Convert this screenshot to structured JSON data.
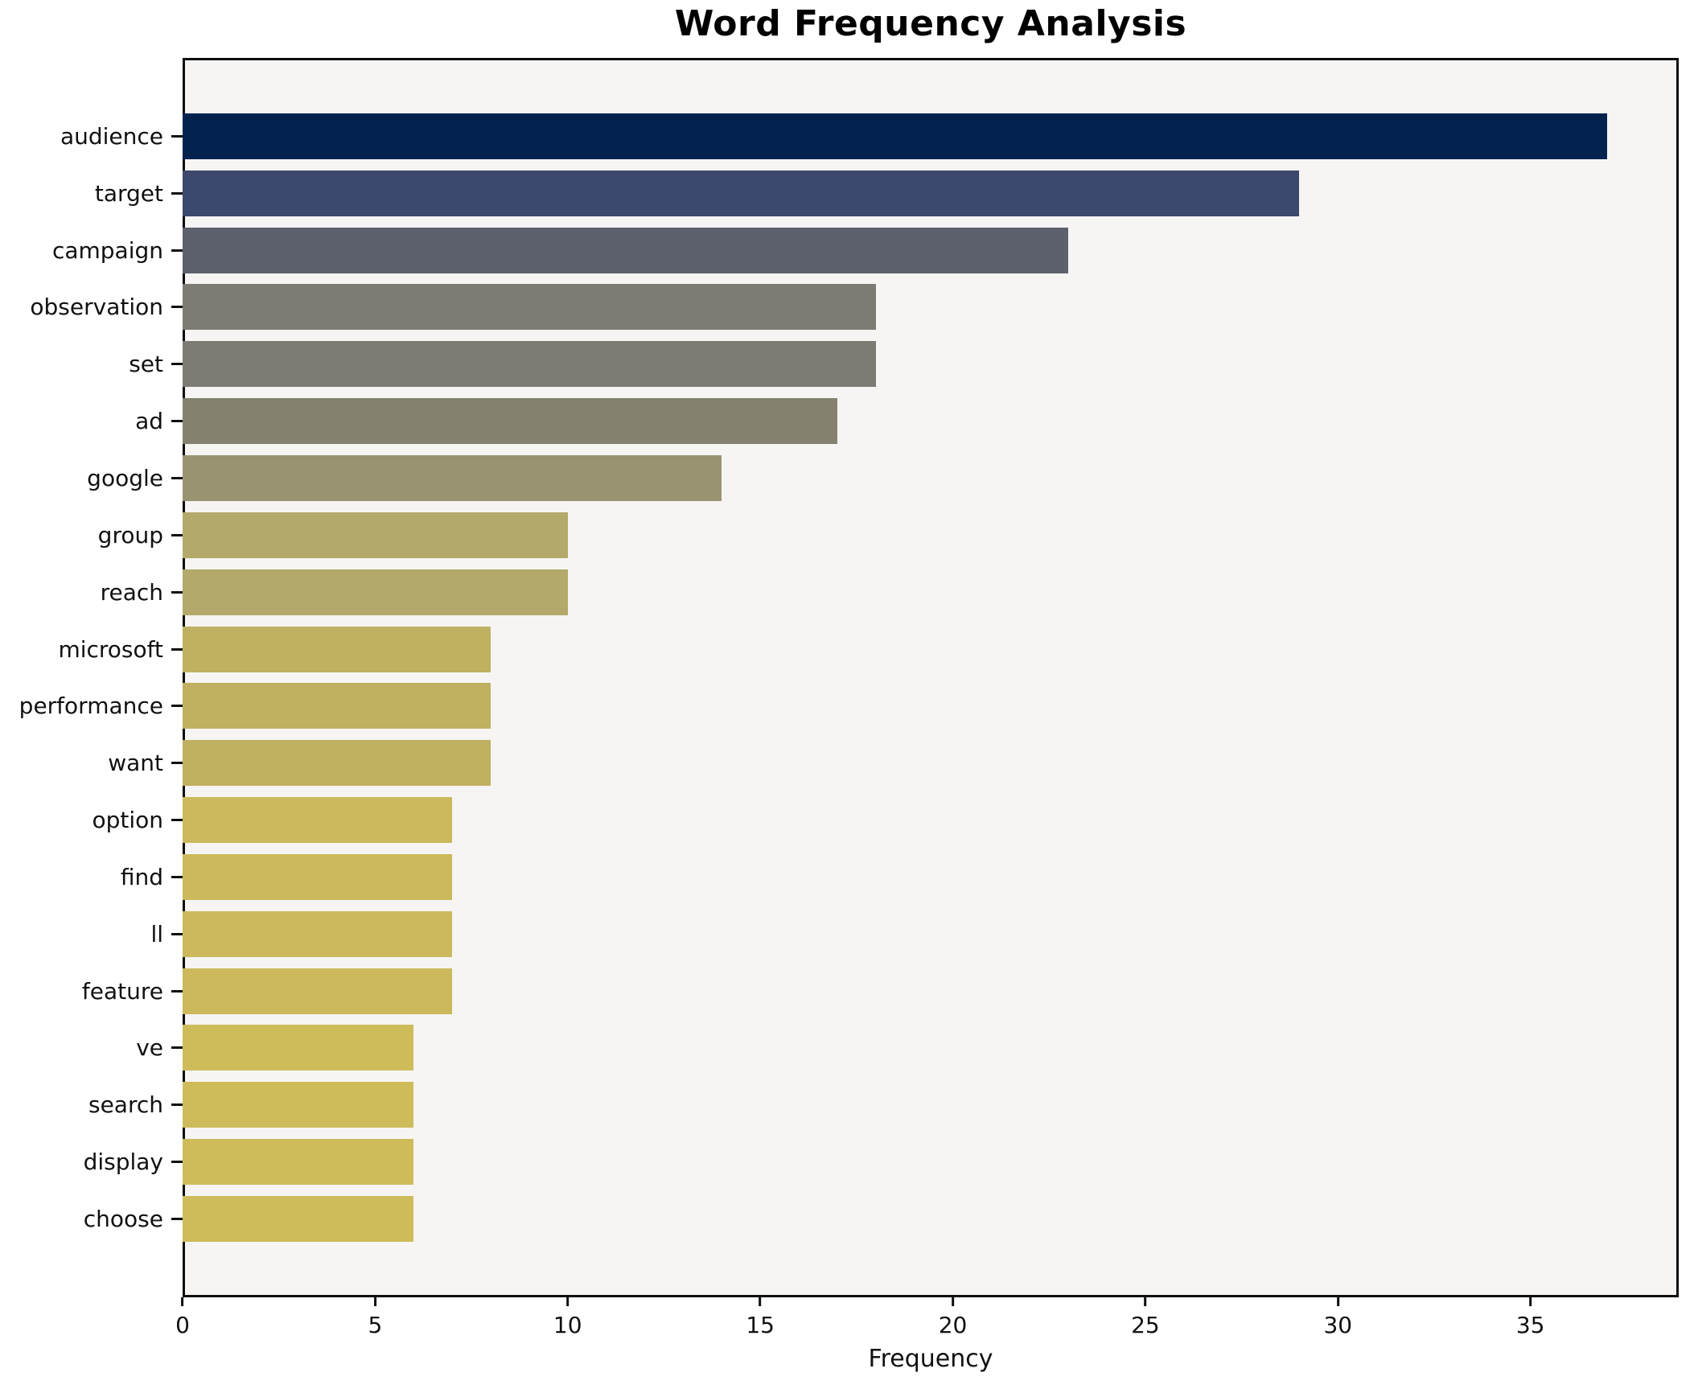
{
  "title": "Word Frequency Analysis",
  "chart_data": {
    "type": "bar",
    "orientation": "horizontal",
    "title": "Word Frequency Analysis",
    "xlabel": "Frequency",
    "ylabel": "",
    "categories": [
      "audience",
      "target",
      "campaign",
      "observation",
      "set",
      "ad",
      "google",
      "group",
      "reach",
      "microsoft",
      "performance",
      "want",
      "option",
      "find",
      "ll",
      "feature",
      "ve",
      "search",
      "display",
      "choose"
    ],
    "values": [
      37,
      29,
      23,
      18,
      18,
      17,
      14,
      10,
      10,
      8,
      8,
      8,
      7,
      7,
      7,
      7,
      6,
      6,
      6,
      6
    ],
    "bar_colors": [
      "#03234e",
      "#3c486c",
      "#5d616e",
      "#7c7b74",
      "#7c7b74",
      "#848170",
      "#9a9372",
      "#b3a96a",
      "#b3a96a",
      "#c0b062",
      "#c0b062",
      "#c0b062",
      "#cbb95c",
      "#cbb95c",
      "#cbb95c",
      "#cbb95c",
      "#cebc5b",
      "#cebc5b",
      "#cebc5b",
      "#cebc5b"
    ],
    "xlim": [
      0,
      38.85
    ],
    "xticks": [
      0,
      5,
      10,
      15,
      20,
      25,
      30,
      35
    ],
    "grid": false,
    "legend": "none",
    "plot_bg": "#f6f5f4",
    "figure_bg": "#ffffff",
    "spine_color": "#0e0e0e",
    "text_color": "#111111",
    "colormap_note": "cividis reversed, mapped by value"
  }
}
